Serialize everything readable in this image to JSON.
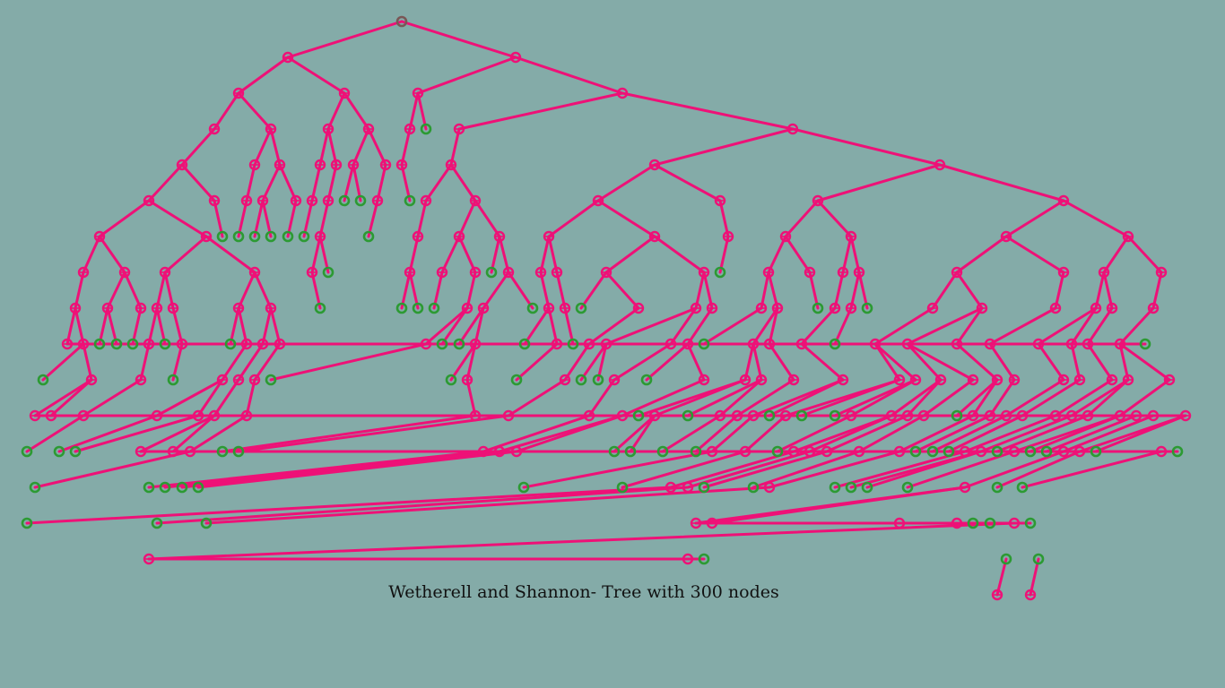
{
  "caption": "Wetherell and Shannon- Tree with 300 nodes",
  "colors": {
    "background": "#84aba8",
    "edge": "#ee1177",
    "internal_node": "#ee1177",
    "leaf_node": "#2c9a33",
    "root_node": "#7a5656"
  },
  "tree": {
    "node_count": 300,
    "layout": "Wetherell and Shannon",
    "root": [
      "L",
      "R"
    ],
    "L": [
      "LL",
      "LR"
    ],
    "LL": [
      "LLL",
      "LLR"
    ],
    "LLL": [
      "LLLL",
      null
    ],
    "LLLL": [
      "LLLLL",
      null
    ],
    "LLLLL": [
      "a1",
      "a2"
    ],
    "a1": [
      "a1a",
      "a1b"
    ],
    "a1a": [
      "a1aa",
      null
    ],
    "a1aa": [
      "a1aaa",
      "a1aab"
    ],
    "a1aaa": [
      "a1aaaa",
      "a1aaab"
    ],
    "a1aaaa": [
      "a1aaaaa",
      null
    ],
    "a1aaaaa": [
      "a1aaaaaa",
      null
    ],
    "a1aaaab": [],
    "a1aaab": [
      "a1aaaba",
      null
    ],
    "a1aaaba": [
      "a1aaaba_l",
      null
    ],
    "a1aaaba_l": [],
    "a1aaaaaa": [
      "a1aaaaaaa",
      null
    ],
    "a1aaaaaaa": [],
    "a1aab": [
      "a1aaba",
      null
    ],
    "a1aaba": [
      "a1aabaa",
      null
    ],
    "a1aabaa": [],
    "a1b": [
      "a1ba",
      "a1bb"
    ],
    "a1ba": [
      "a1baa",
      null
    ],
    "a1baa": [],
    "a1bb": [
      "a1bba",
      null
    ],
    "a1bba": [],
    "a2": [
      "a2a",
      "a2b"
    ],
    "a2a": [
      "a2aa",
      "a2ab"
    ],
    "a2aa": [
      "a2aaa",
      null
    ],
    "a2aaa": [],
    "a2ab": [
      "a2aba",
      null
    ],
    "a2aba": [],
    "a2b": [
      "a2ba",
      "a2bb"
    ],
    "a2ba": [
      "a2baa",
      "a2bab"
    ],
    "a2baa": [],
    "a2bab": [
      "a2baba",
      null
    ],
    "a2baba": [
      "a2babaa",
      null
    ],
    "a2babaa": [],
    "a2bb": []
  }
}
